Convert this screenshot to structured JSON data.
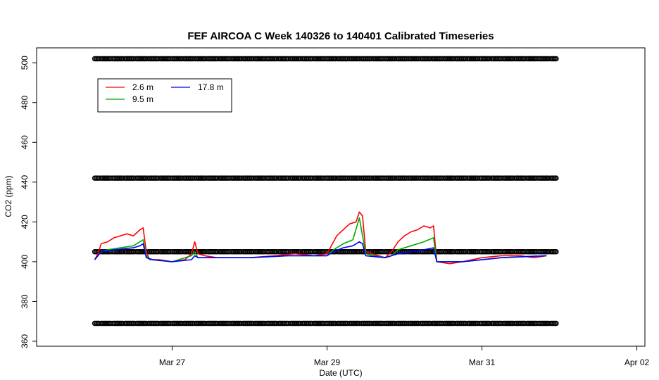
{
  "chart_data": {
    "type": "line",
    "title": "FEF AIRCOA C  Week 140326 to 140401  Calibrated Timeseries",
    "xlabel": "Date (UTC)",
    "ylabel": "CO2 (ppm)",
    "xlim": [
      "2014-03-25 06:00",
      "2014-04-02 02:30"
    ],
    "ylim": [
      357.5,
      507.5
    ],
    "x_ticks": [
      "Mar 27",
      "Mar 29",
      "Mar 31",
      "Apr 02"
    ],
    "y_ticks": [
      360,
      380,
      400,
      420,
      440,
      460,
      480,
      500
    ],
    "legend": {
      "position": "top-left",
      "entries": [
        "2.6 m",
        "9.5 m",
        "17.8 m"
      ]
    },
    "colors": {
      "2.6 m": "#ff0000",
      "9.5 m": "#00aa00",
      "17.8 m": "#0000ff",
      "calibration": "#000000"
    },
    "calibration_levels": [
      502,
      442,
      405,
      369
    ],
    "calibration_range": [
      "2014-03-26 00:00",
      "2014-03-31 23:00"
    ],
    "series": [
      {
        "name": "2.6 m",
        "color": "#ff0000",
        "points": [
          [
            "2014-03-26 00:00",
            401
          ],
          [
            "2014-03-26 01:00",
            404
          ],
          [
            "2014-03-26 02:00",
            409
          ],
          [
            "2014-03-26 04:00",
            410
          ],
          [
            "2014-03-26 06:00",
            412
          ],
          [
            "2014-03-26 08:00",
            413
          ],
          [
            "2014-03-26 10:00",
            414
          ],
          [
            "2014-03-26 12:00",
            413
          ],
          [
            "2014-03-26 14:00",
            416
          ],
          [
            "2014-03-26 15:00",
            417
          ],
          [
            "2014-03-26 16:00",
            405
          ],
          [
            "2014-03-26 17:00",
            401
          ],
          [
            "2014-03-26 20:00",
            401
          ],
          [
            "2014-03-27 00:00",
            400
          ],
          [
            "2014-03-27 04:00",
            401
          ],
          [
            "2014-03-27 06:00",
            404
          ],
          [
            "2014-03-27 07:00",
            410
          ],
          [
            "2014-03-27 08:00",
            404
          ],
          [
            "2014-03-27 10:00",
            403
          ],
          [
            "2014-03-27 14:00",
            402
          ],
          [
            "2014-03-28 00:00",
            402
          ],
          [
            "2014-03-28 08:00",
            403
          ],
          [
            "2014-03-28 14:00",
            404
          ],
          [
            "2014-03-28 20:00",
            403
          ],
          [
            "2014-03-29 00:00",
            404
          ],
          [
            "2014-03-29 01:00",
            407
          ],
          [
            "2014-03-29 03:00",
            413
          ],
          [
            "2014-03-29 05:00",
            416
          ],
          [
            "2014-03-29 07:00",
            419
          ],
          [
            "2014-03-29 09:00",
            420
          ],
          [
            "2014-03-29 10:00",
            425
          ],
          [
            "2014-03-29 11:00",
            423
          ],
          [
            "2014-03-29 12:00",
            405
          ],
          [
            "2014-03-29 14:00",
            404
          ],
          [
            "2014-03-29 16:00",
            403
          ],
          [
            "2014-03-29 18:00",
            402
          ],
          [
            "2014-03-29 20:00",
            405
          ],
          [
            "2014-03-29 22:00",
            410
          ],
          [
            "2014-03-30 00:00",
            413
          ],
          [
            "2014-03-30 02:00",
            415
          ],
          [
            "2014-03-30 04:00",
            416
          ],
          [
            "2014-03-30 06:00",
            418
          ],
          [
            "2014-03-30 08:00",
            417
          ],
          [
            "2014-03-30 09:00",
            418
          ],
          [
            "2014-03-30 10:00",
            400
          ],
          [
            "2014-03-30 14:00",
            399
          ],
          [
            "2014-03-30 18:00",
            400
          ],
          [
            "2014-03-31 00:00",
            402
          ],
          [
            "2014-03-31 06:00",
            403
          ],
          [
            "2014-03-31 12:00",
            403
          ],
          [
            "2014-03-31 16:00",
            402
          ],
          [
            "2014-03-31 20:00",
            403
          ]
        ]
      },
      {
        "name": "9.5 m",
        "color": "#00aa00",
        "points": [
          [
            "2014-03-26 00:00",
            401
          ],
          [
            "2014-03-26 02:00",
            405
          ],
          [
            "2014-03-26 04:00",
            406
          ],
          [
            "2014-03-26 08:00",
            407
          ],
          [
            "2014-03-26 12:00",
            408
          ],
          [
            "2014-03-26 14:00",
            410
          ],
          [
            "2014-03-26 15:00",
            411
          ],
          [
            "2014-03-26 16:00",
            403
          ],
          [
            "2014-03-26 17:00",
            401
          ],
          [
            "2014-03-27 00:00",
            400
          ],
          [
            "2014-03-27 06:00",
            403
          ],
          [
            "2014-03-27 07:00",
            405
          ],
          [
            "2014-03-27 08:00",
            402
          ],
          [
            "2014-03-28 00:00",
            402
          ],
          [
            "2014-03-28 12:00",
            403
          ],
          [
            "2014-03-29 00:00",
            403
          ],
          [
            "2014-03-29 02:00",
            406
          ],
          [
            "2014-03-29 05:00",
            409
          ],
          [
            "2014-03-29 08:00",
            411
          ],
          [
            "2014-03-29 10:00",
            422
          ],
          [
            "2014-03-29 11:00",
            413
          ],
          [
            "2014-03-29 12:00",
            404
          ],
          [
            "2014-03-29 18:00",
            402
          ],
          [
            "2014-03-29 20:00",
            403
          ],
          [
            "2014-03-29 22:00",
            406
          ],
          [
            "2014-03-30 02:00",
            408
          ],
          [
            "2014-03-30 06:00",
            410
          ],
          [
            "2014-03-30 09:00",
            412
          ],
          [
            "2014-03-30 10:00",
            400
          ],
          [
            "2014-03-30 18:00",
            400
          ],
          [
            "2014-03-31 06:00",
            402
          ],
          [
            "2014-03-31 20:00",
            403
          ]
        ]
      },
      {
        "name": "17.8 m",
        "color": "#0000ff",
        "points": [
          [
            "2014-03-26 00:00",
            401
          ],
          [
            "2014-03-26 01:00",
            403
          ],
          [
            "2014-03-26 02:00",
            405
          ],
          [
            "2014-03-26 06:00",
            406
          ],
          [
            "2014-03-26 12:00",
            407
          ],
          [
            "2014-03-26 14:00",
            408
          ],
          [
            "2014-03-26 15:00",
            409
          ],
          [
            "2014-03-26 16:00",
            402
          ],
          [
            "2014-03-26 18:00",
            401
          ],
          [
            "2014-03-27 00:00",
            400
          ],
          [
            "2014-03-27 06:00",
            401
          ],
          [
            "2014-03-27 07:00",
            403
          ],
          [
            "2014-03-27 08:00",
            402
          ],
          [
            "2014-03-28 00:00",
            402
          ],
          [
            "2014-03-28 12:00",
            403
          ],
          [
            "2014-03-29 00:00",
            403
          ],
          [
            "2014-03-29 02:00",
            405
          ],
          [
            "2014-03-29 05:00",
            407
          ],
          [
            "2014-03-29 08:00",
            408
          ],
          [
            "2014-03-29 10:00",
            410
          ],
          [
            "2014-03-29 11:00",
            409
          ],
          [
            "2014-03-29 12:00",
            403
          ],
          [
            "2014-03-29 18:00",
            402
          ],
          [
            "2014-03-29 20:00",
            403
          ],
          [
            "2014-03-29 22:00",
            404
          ],
          [
            "2014-03-30 02:00",
            405
          ],
          [
            "2014-03-30 06:00",
            406
          ],
          [
            "2014-03-30 09:00",
            407
          ],
          [
            "2014-03-30 10:00",
            400
          ],
          [
            "2014-03-30 18:00",
            400
          ],
          [
            "2014-03-31 06:00",
            402
          ],
          [
            "2014-03-31 20:00",
            403
          ]
        ]
      }
    ]
  }
}
